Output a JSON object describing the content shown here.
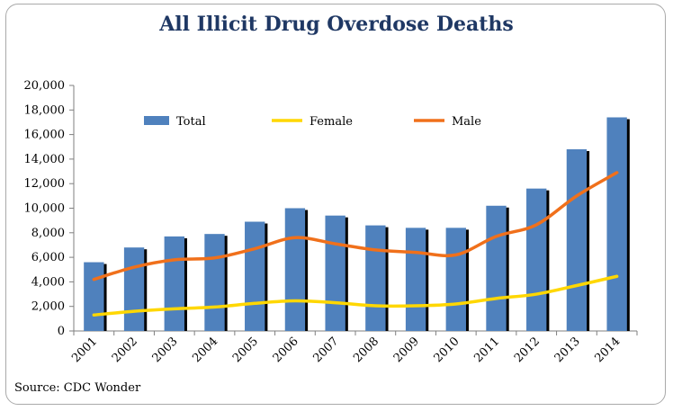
{
  "chart_data": {
    "type": "bar",
    "title": "All Illicit Drug Overdose Deaths",
    "source": "Source: CDC Wonder",
    "categories": [
      "2001",
      "2002",
      "2003",
      "2004",
      "2005",
      "2006",
      "2007",
      "2008",
      "2009",
      "2010",
      "2011",
      "2012",
      "2013",
      "2014"
    ],
    "ylim": [
      0,
      20000
    ],
    "yticks": [
      0,
      2000,
      4000,
      6000,
      8000,
      10000,
      12000,
      14000,
      16000,
      18000,
      20000
    ],
    "ytick_labels": [
      "0",
      "2,000",
      "4,000",
      "6,000",
      "8,000",
      "10,000",
      "12,000",
      "14,000",
      "16,000",
      "18,000",
      "20,000"
    ],
    "xlabel": "",
    "ylabel": "",
    "grid": false,
    "legend_position": "top",
    "series": [
      {
        "name": "Total",
        "kind": "bar",
        "color": "#4f81bd",
        "values": [
          5600,
          6800,
          7700,
          7900,
          8900,
          10000,
          9400,
          8600,
          8400,
          8400,
          10200,
          11600,
          14800,
          17400
        ]
      },
      {
        "name": "Female",
        "kind": "line",
        "color": "#ffd700",
        "values": [
          1300,
          1600,
          1800,
          1950,
          2250,
          2450,
          2300,
          2050,
          2050,
          2200,
          2650,
          3000,
          3700,
          4450
        ]
      },
      {
        "name": "Male",
        "kind": "line",
        "color": "#f0701b",
        "values": [
          4200,
          5200,
          5800,
          5950,
          6700,
          7600,
          7100,
          6600,
          6400,
          6200,
          7700,
          8650,
          11000,
          12900
        ]
      }
    ]
  }
}
